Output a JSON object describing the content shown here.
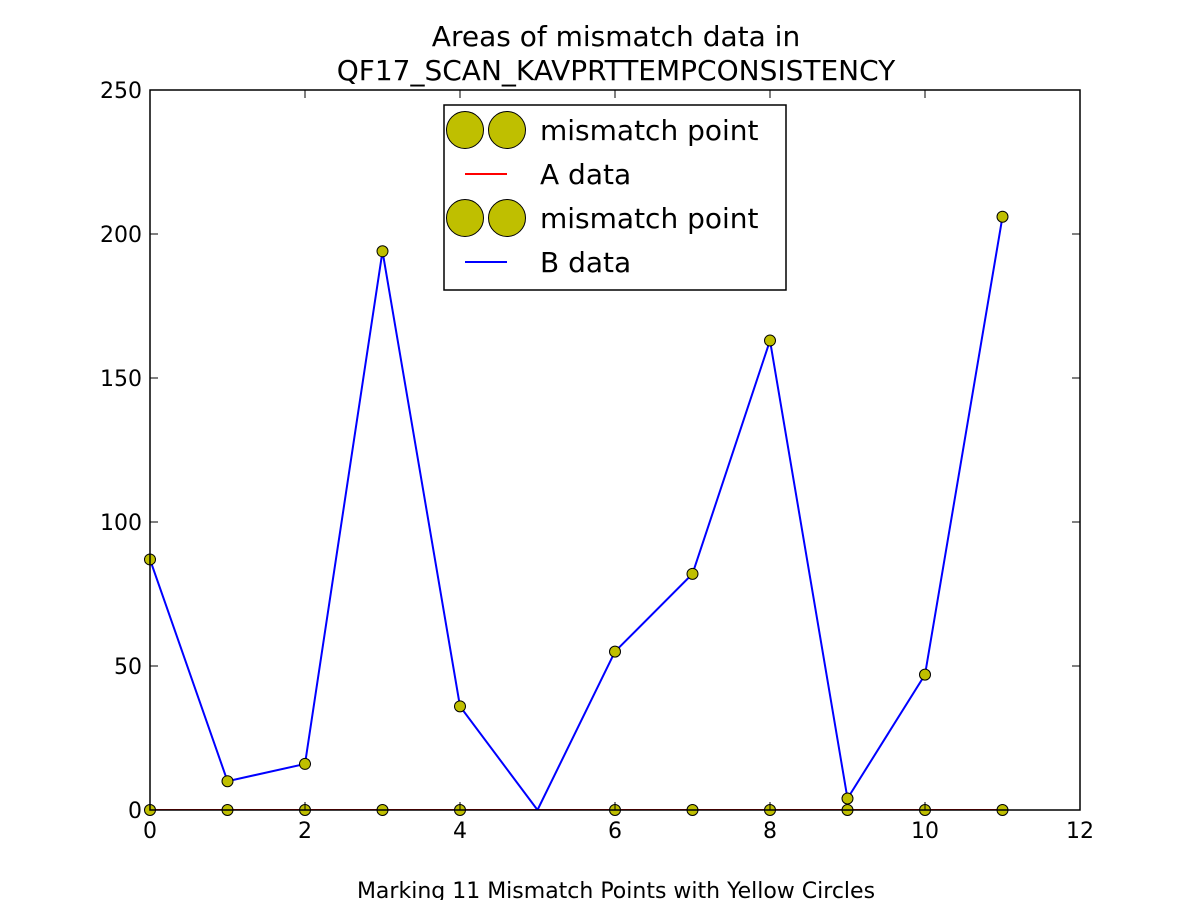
{
  "chart_data": {
    "type": "line",
    "title_lines": [
      "Areas of mismatch data in",
      "QF17_SCAN_KAVPRTTEMPCONSISTENCY"
    ],
    "xlabel": "Marking 11 Mismatch Points with Yellow Circles",
    "ylabel": "",
    "xlim": [
      0,
      12
    ],
    "ylim": [
      0,
      250
    ],
    "xticks": [
      0,
      2,
      4,
      6,
      8,
      10,
      12
    ],
    "yticks": [
      0,
      50,
      100,
      150,
      200,
      250
    ],
    "grid": false,
    "legend_position": "upper center",
    "series": [
      {
        "name": "mismatch point",
        "kind": "markers",
        "color": "#bfbf00",
        "x": [
          0,
          1,
          2,
          3,
          4,
          6,
          7,
          8,
          9,
          10,
          11
        ],
        "y": [
          0,
          0,
          0,
          0,
          0,
          0,
          0,
          0,
          0,
          0,
          0
        ]
      },
      {
        "name": "A data",
        "kind": "line",
        "color": "#ff0000",
        "x": [
          0,
          1,
          2,
          3,
          4,
          5,
          6,
          7,
          8,
          9,
          10,
          11
        ],
        "y": [
          0,
          0,
          0,
          0,
          0,
          0,
          0,
          0,
          0,
          0,
          0,
          0
        ]
      },
      {
        "name": "mismatch point",
        "kind": "markers",
        "color": "#bfbf00",
        "x": [
          0,
          1,
          2,
          3,
          4,
          6,
          7,
          8,
          9,
          10,
          11
        ],
        "y": [
          87,
          10,
          16,
          194,
          36,
          55,
          82,
          163,
          4,
          47,
          206
        ]
      },
      {
        "name": "B data",
        "kind": "line",
        "color": "#0000ff",
        "x": [
          0,
          1,
          2,
          3,
          4,
          5,
          6,
          7,
          8,
          9,
          10,
          11
        ],
        "y": [
          87,
          10,
          16,
          194,
          36,
          0,
          55,
          82,
          163,
          4,
          47,
          206
        ]
      }
    ]
  }
}
